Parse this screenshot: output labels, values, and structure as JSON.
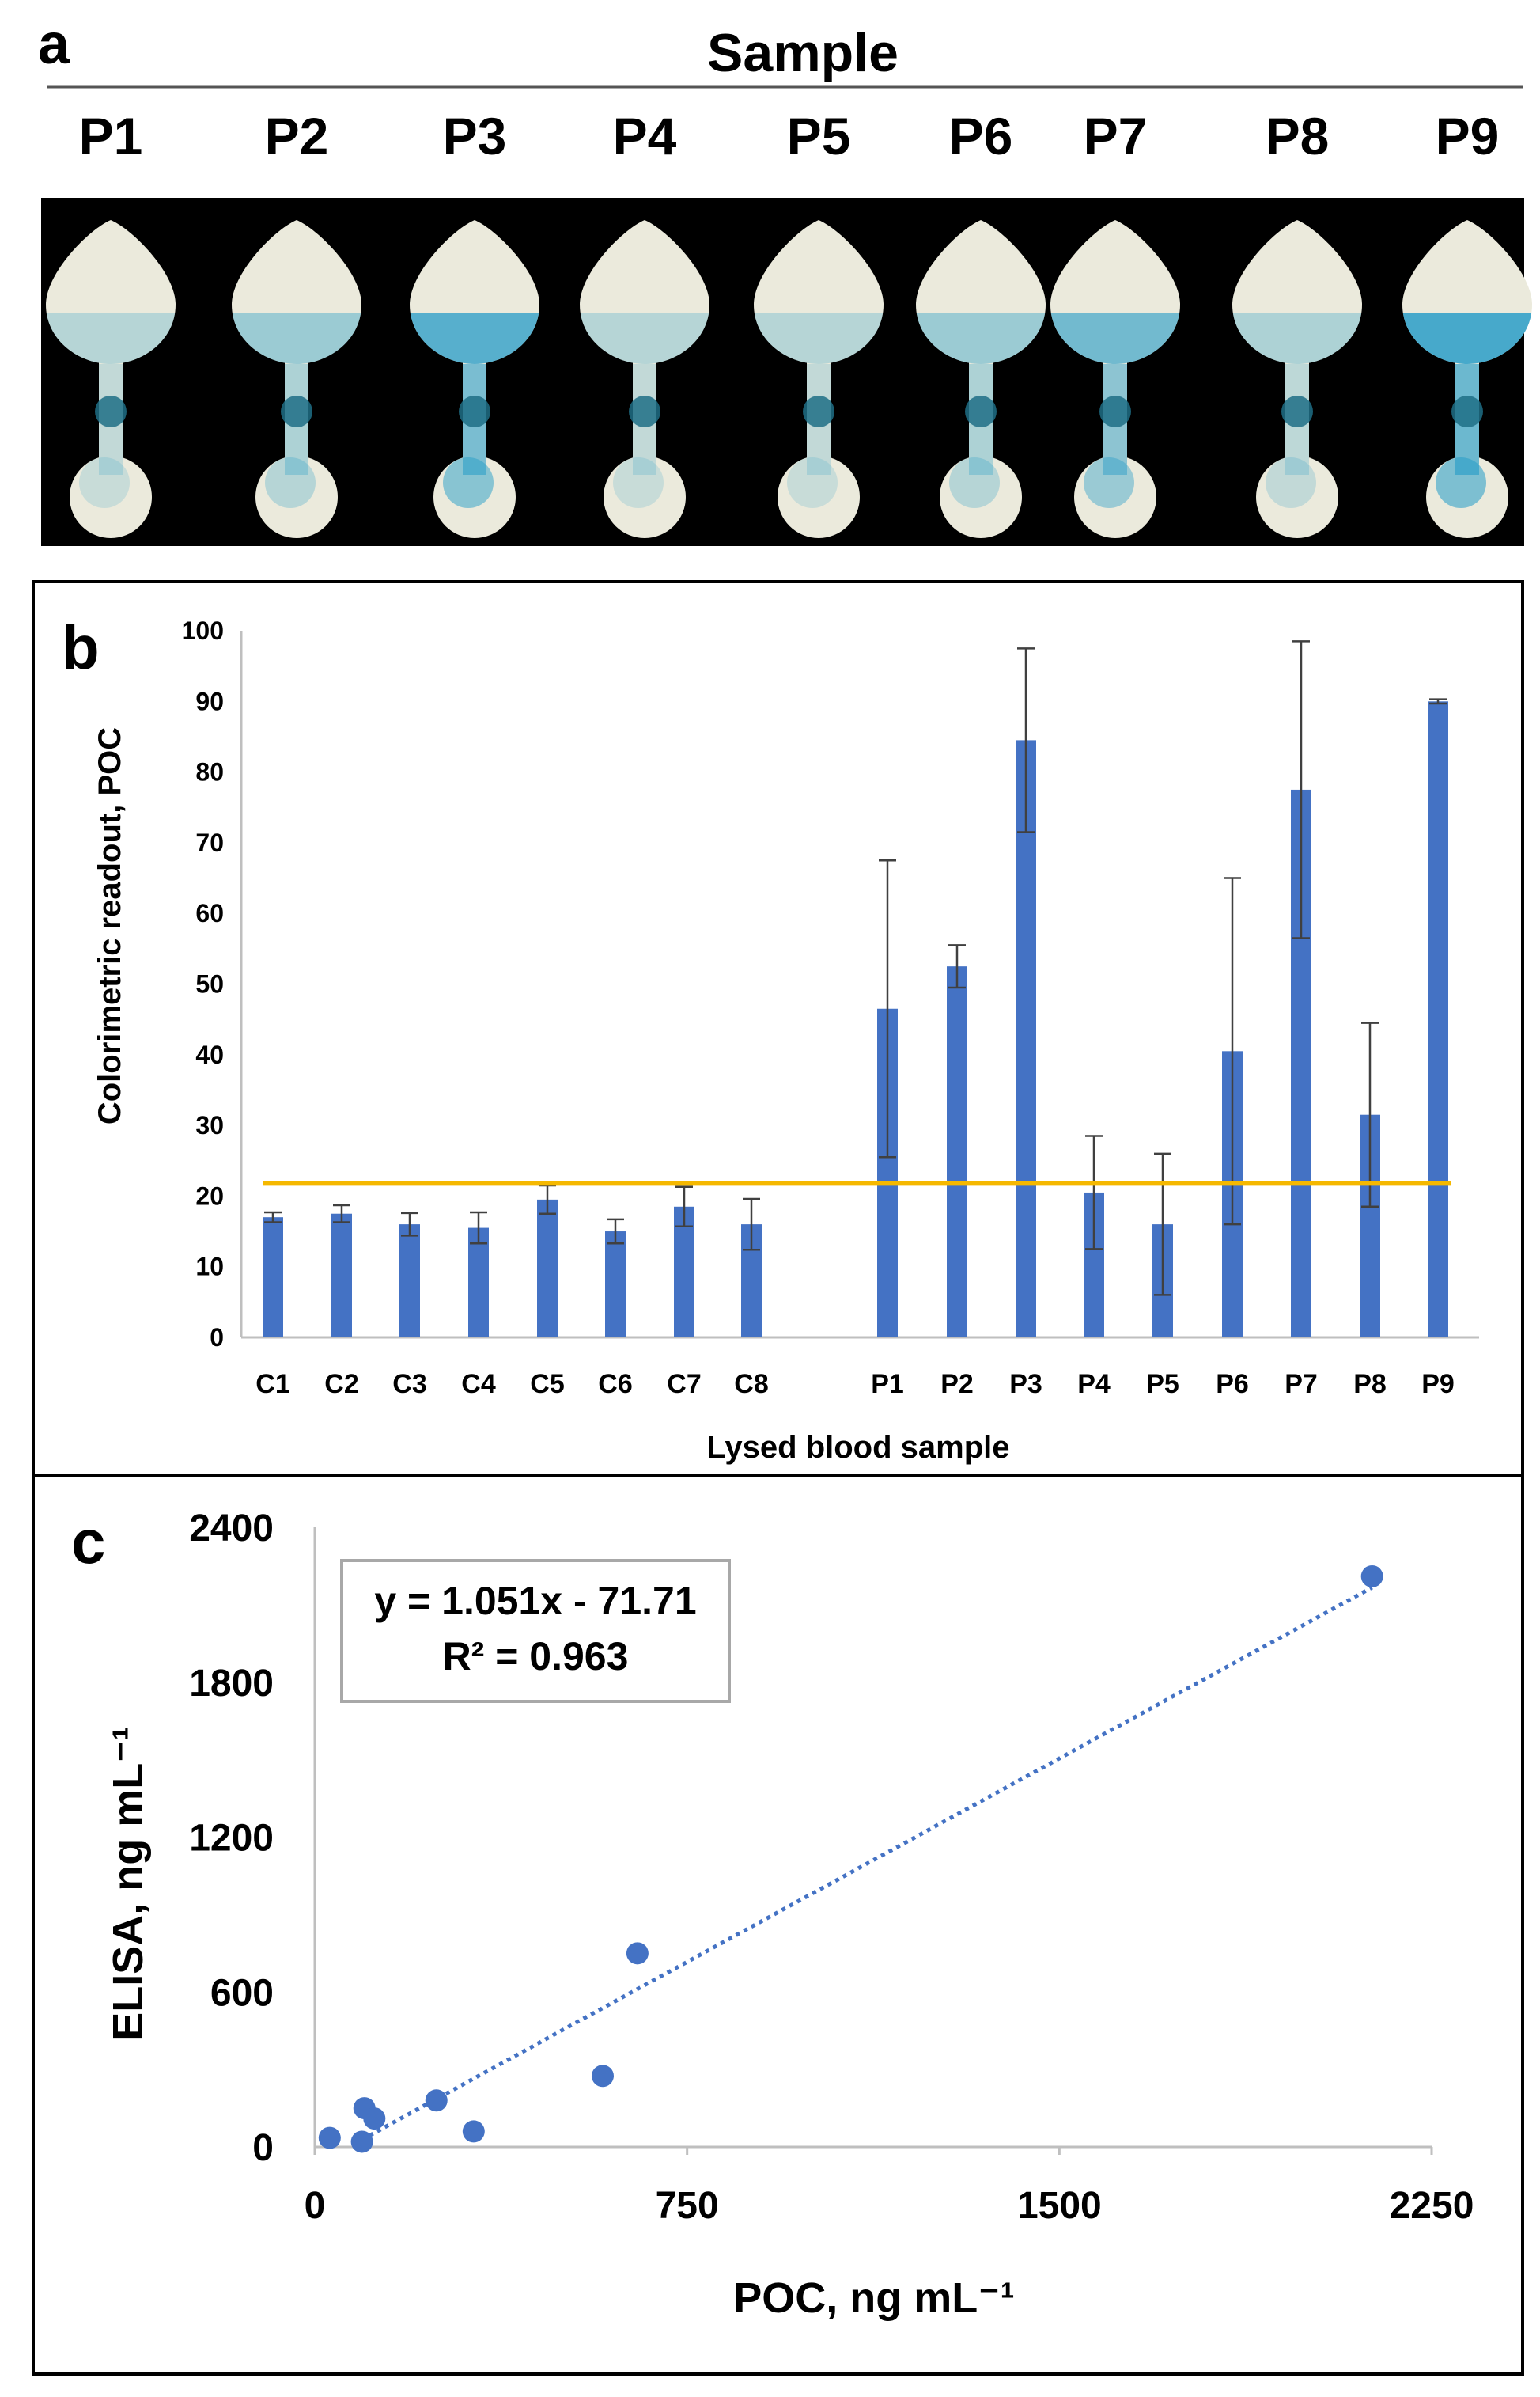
{
  "panel_a": {
    "label": "a",
    "header": "Sample",
    "samples": [
      "P1",
      "P2",
      "P3",
      "P4",
      "P5",
      "P6",
      "P7",
      "P8",
      "P9"
    ],
    "stain_intensity": [
      0.3,
      0.45,
      0.85,
      0.3,
      0.3,
      0.45,
      0.7,
      0.35,
      0.95
    ],
    "colors": {
      "background": "#000000",
      "paper": "#ebeadc",
      "stain": "#2a9ec8"
    }
  },
  "chart_data": [
    {
      "id": "b",
      "type": "bar",
      "panel_label": "b",
      "title": "",
      "categories": [
        "C1",
        "C2",
        "C3",
        "C4",
        "C5",
        "C6",
        "C7",
        "C8",
        "",
        "P1",
        "P2",
        "P3",
        "P4",
        "P5",
        "P6",
        "P7",
        "P8",
        "P9"
      ],
      "values": [
        17,
        17.5,
        16,
        15.5,
        19.5,
        15,
        18.5,
        16,
        null,
        46.5,
        52.5,
        84.5,
        20.5,
        16,
        40.5,
        77.5,
        31.5,
        90
      ],
      "errors": [
        0.7,
        1.2,
        1.6,
        2.2,
        2,
        1.7,
        2.8,
        3.6,
        null,
        21,
        3,
        13,
        8,
        10,
        24.5,
        21,
        13,
        0.3
      ],
      "threshold": 21.8,
      "xlabel": "Lysed blood sample",
      "ylabel": "Colorimetric readout, POC",
      "ylim": [
        0,
        100
      ],
      "yticks": [
        0,
        10,
        20,
        30,
        40,
        50,
        60,
        70,
        80,
        90,
        100
      ],
      "colors": {
        "bar": "#4472c4",
        "threshold": "#f5b800",
        "error": "#404040"
      }
    },
    {
      "id": "c",
      "type": "scatter",
      "panel_label": "c",
      "title": "",
      "x": [
        30,
        100,
        120,
        95,
        245,
        320,
        580,
        650,
        2130
      ],
      "y": [
        35,
        150,
        110,
        20,
        180,
        60,
        275,
        750,
        2210
      ],
      "trend": {
        "slope": 1.051,
        "intercept": -71.71,
        "x_range": [
          95,
          2130
        ]
      },
      "equation": "y = 1.051x - 71.71",
      "r2": "R² = 0.963",
      "xlabel": "POC, ng mL⁻¹",
      "ylabel": "ELISA, ng mL⁻¹",
      "xlim": [
        0,
        2250
      ],
      "ylim": [
        0,
        2400
      ],
      "xticks": [
        0,
        750,
        1500,
        2250
      ],
      "yticks": [
        0,
        600,
        1200,
        1800,
        2400
      ],
      "colors": {
        "point": "#4472c4",
        "trend": "#4472c4"
      }
    }
  ]
}
